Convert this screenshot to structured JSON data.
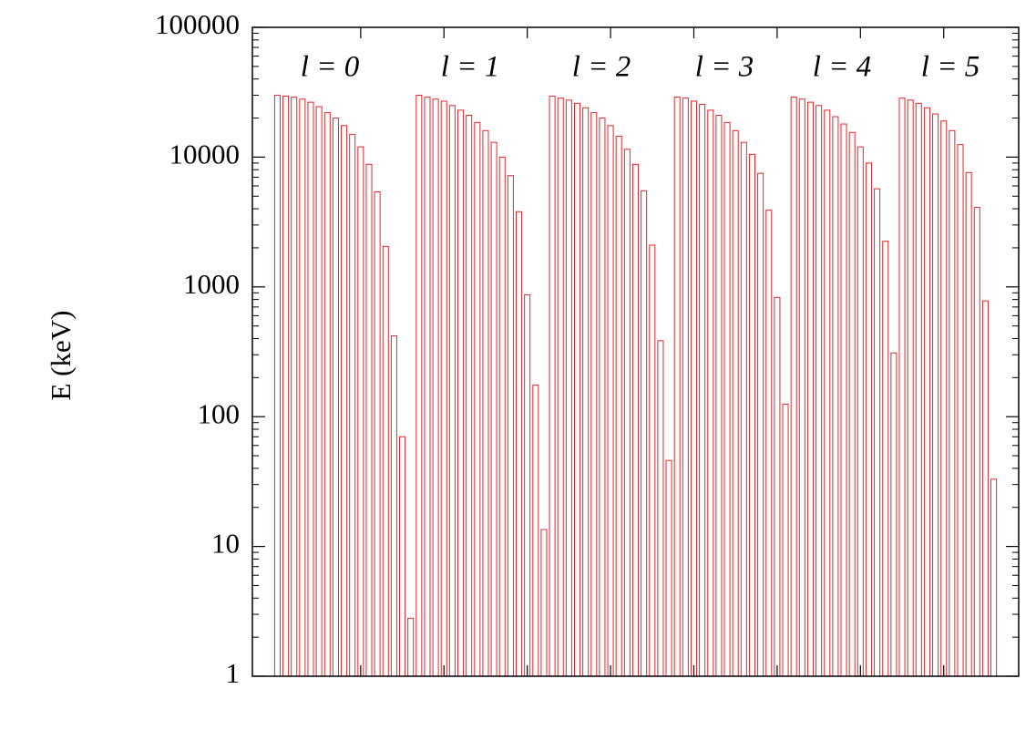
{
  "chart_data": {
    "type": "bar",
    "y_label": "E (keV)",
    "annotations": [
      "l = 0",
      "l = 1",
      "l = 2",
      "l = 3",
      "l = 4",
      "l = 5"
    ],
    "x": [
      0,
      1,
      2,
      3,
      4,
      5,
      6,
      7,
      8,
      9,
      10,
      11,
      12,
      13,
      14,
      15,
      16,
      17,
      18,
      19,
      20,
      21,
      22,
      23,
      24,
      25,
      26,
      27,
      28,
      29,
      30,
      31,
      32,
      33,
      34,
      35,
      36,
      37,
      38,
      39,
      40,
      41,
      42,
      43,
      44,
      45,
      46,
      47,
      48,
      49,
      50,
      51,
      52,
      53,
      54,
      55,
      56,
      57,
      58,
      59,
      60,
      61,
      62,
      63,
      64,
      65,
      66,
      67,
      68,
      69,
      70,
      71,
      72,
      73,
      74,
      75,
      76,
      77,
      78,
      79,
      80,
      81,
      82,
      83,
      84,
      85,
      86
    ],
    "values": [
      30000,
      29500,
      29000,
      28000,
      26500,
      24500,
      22000,
      20000,
      17500,
      15000,
      12000,
      8800,
      5400,
      2050,
      420,
      70,
      2.8,
      30000,
      29000,
      28000,
      27000,
      25000,
      23000,
      21000,
      18500,
      16000,
      13000,
      10000,
      7200,
      3800,
      870,
      175,
      13.5,
      29500,
      28500,
      27500,
      26000,
      24000,
      22000,
      20000,
      17500,
      14500,
      11500,
      8800,
      5500,
      2100,
      385,
      46,
      29000,
      28500,
      27000,
      25500,
      23000,
      21000,
      18500,
      16000,
      13000,
      10500,
      7500,
      3900,
      830,
      125,
      29000,
      28000,
      26500,
      25000,
      23000,
      20500,
      18000,
      15500,
      12000,
      9000,
      5700,
      2250,
      310,
      28500,
      27500,
      26000,
      24000,
      21500,
      19000,
      16000,
      12500,
      7600,
      4100,
      780,
      33
    ],
    "color": "#e8262a",
    "xlim": [
      -3,
      89
    ],
    "xticks": [
      10,
      20,
      30,
      40,
      50,
      60,
      70,
      80
    ],
    "ylim": [
      1,
      100000
    ],
    "yticks": [
      1,
      10,
      100,
      1000,
      10000,
      100000
    ],
    "ylog": true
  }
}
